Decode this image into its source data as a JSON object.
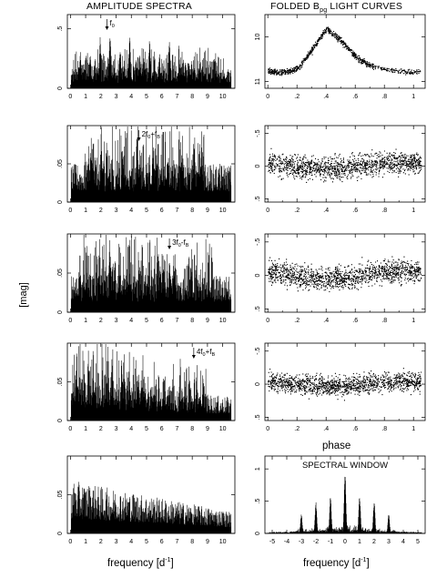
{
  "titles": {
    "left": "AMPLITUDE SPECTRA",
    "right_main": "FOLDED B",
    "right_sub": "pg",
    "right_tail": " LIGHT CURVES"
  },
  "shared_ylabel": "[mag]",
  "xlabels": {
    "frequency_main": "frequency [d",
    "frequency_sup": "-1",
    "frequency_tail": "]",
    "phase": "phase"
  },
  "chart_data": [
    {
      "type": "line",
      "panel": "amplitude-spectrum-1",
      "column": "left",
      "row": 1,
      "xlim": [
        -0.2,
        10.8
      ],
      "ylim": [
        0,
        0.62
      ],
      "xticks": [
        0,
        1,
        2,
        3,
        4,
        5,
        6,
        7,
        8,
        9,
        10
      ],
      "yticks": [
        0,
        0.5
      ],
      "ytick_labels": [
        "0",
        ".5"
      ],
      "peak_frequencies": [
        0.65,
        1.3,
        1.95,
        2.6,
        3.25,
        3.9,
        4.55,
        5.2,
        5.85,
        6.5,
        7.15,
        7.8,
        8.45,
        9.1,
        9.75
      ],
      "peak_amplitudes": [
        0.31,
        0.3,
        0.43,
        0.48,
        0.33,
        0.44,
        0.3,
        0.42,
        0.31,
        0.41,
        0.24,
        0.22,
        0.18,
        0.14,
        0.12
      ],
      "noise_level": 0.13,
      "annotation": {
        "text_main": "f",
        "text_sub": "0",
        "x": 2.4
      }
    },
    {
      "type": "line",
      "panel": "amplitude-spectrum-2",
      "column": "left",
      "row": 2,
      "xlim": [
        -0.2,
        10.8
      ],
      "ylim": [
        0,
        0.1
      ],
      "xticks": [
        0,
        1,
        2,
        3,
        4,
        5,
        6,
        7,
        8,
        9,
        10
      ],
      "yticks": [
        0,
        0.05
      ],
      "ytick_labels": [
        "0",
        ".05"
      ],
      "peak_frequencies": [
        1.4,
        2.4,
        3.4,
        4.4,
        5.4,
        6.4,
        7.4,
        8.4
      ],
      "peak_amplitudes": [
        0.062,
        0.064,
        0.07,
        0.085,
        0.066,
        0.06,
        0.05,
        0.045
      ],
      "noise_level": 0.04,
      "annotation": {
        "text_main": "2f",
        "text_sub": "0",
        "text_tail": "+f",
        "text_sub2": "B",
        "x": 4.5
      }
    },
    {
      "type": "line",
      "panel": "amplitude-spectrum-3",
      "column": "left",
      "row": 3,
      "xlim": [
        -0.2,
        10.8
      ],
      "ylim": [
        0,
        0.1
      ],
      "xticks": [
        0,
        1,
        2,
        3,
        4,
        5,
        6,
        7,
        8,
        9,
        10
      ],
      "yticks": [
        0,
        0.05
      ],
      "ytick_labels": [
        "0",
        ".05"
      ],
      "peak_frequencies": [
        0.9,
        1.9,
        2.9,
        3.9,
        4.9,
        5.9,
        6.5,
        7.9,
        8.9
      ],
      "peak_amplitudes": [
        0.04,
        0.048,
        0.058,
        0.048,
        0.052,
        0.06,
        0.07,
        0.045,
        0.04
      ],
      "noise_level": 0.038,
      "annotation": {
        "text_main": "3f",
        "text_sub": "0",
        "text_tail": "-f",
        "text_sub2": "B",
        "x": 6.5
      }
    },
    {
      "type": "line",
      "panel": "amplitude-spectrum-4",
      "column": "left",
      "row": 4,
      "xlim": [
        -0.2,
        10.8
      ],
      "ylim": [
        0,
        0.1
      ],
      "xticks": [
        0,
        1,
        2,
        3,
        4,
        5,
        6,
        7,
        8,
        9,
        10
      ],
      "yticks": [
        0,
        0.05
      ],
      "ytick_labels": [
        "0",
        ".05"
      ],
      "peak_frequencies": [
        0.5,
        1.5,
        2.5,
        3.5,
        4.5,
        5.5,
        6.5,
        7.5,
        8.5
      ],
      "peak_amplitudes": [
        0.052,
        0.06,
        0.06,
        0.055,
        0.045,
        0.04,
        0.036,
        0.034,
        0.032
      ],
      "noise_level": 0.036,
      "annotation": {
        "text_main": "4f",
        "text_sub": "0",
        "text_tail": "+f",
        "text_sub2": "B",
        "x": 8.1
      }
    },
    {
      "type": "line",
      "panel": "amplitude-spectrum-5",
      "column": "left",
      "row": 5,
      "xlim": [
        -0.2,
        10.8
      ],
      "ylim": [
        0,
        0.1
      ],
      "xticks": [
        0,
        1,
        2,
        3,
        4,
        5,
        6,
        7,
        8,
        9,
        10
      ],
      "yticks": [
        0,
        0.05
      ],
      "ytick_labels": [
        "0",
        ".05"
      ],
      "noise_level": 0.044
    },
    {
      "type": "scatter",
      "panel": "folded-light-curve-1",
      "column": "right",
      "row": 1,
      "xlim": [
        -0.02,
        1.08
      ],
      "ylim": [
        11.15,
        9.5
      ],
      "y_inverted": true,
      "xticks": [
        0,
        0.2,
        0.4,
        0.6,
        0.8,
        1
      ],
      "xtick_labels": [
        "0",
        ".2",
        ".4",
        ".6",
        ".8",
        "1"
      ],
      "yticks": [
        10,
        11
      ],
      "ytick_labels": [
        "10",
        "11"
      ],
      "curve_phase": [
        0,
        0.1,
        0.2,
        0.3,
        0.4,
        0.5,
        0.6,
        0.7,
        0.8,
        0.9,
        1.0
      ],
      "curve_mag": [
        10.78,
        10.8,
        10.72,
        10.3,
        9.82,
        10.08,
        10.45,
        10.65,
        10.72,
        10.78,
        10.8
      ]
    },
    {
      "type": "scatter",
      "panel": "folded-light-curve-2",
      "column": "right",
      "row": 2,
      "xlim": [
        -0.02,
        1.08
      ],
      "ylim": [
        0.55,
        -0.62
      ],
      "y_inverted": true,
      "xticks": [
        0,
        0.2,
        0.4,
        0.6,
        0.8,
        1
      ],
      "xtick_labels": [
        "0",
        ".2",
        ".4",
        ".6",
        ".8",
        "1"
      ],
      "yticks": [
        -0.5,
        0,
        0.5
      ],
      "ytick_labels": [
        "-.5",
        "0",
        ".5"
      ],
      "scatter_sigma": 0.12,
      "modulation_amplitude": 0.05
    },
    {
      "type": "scatter",
      "panel": "folded-light-curve-3",
      "column": "right",
      "row": 3,
      "xlim": [
        -0.02,
        1.08
      ],
      "ylim": [
        0.55,
        -0.62
      ],
      "y_inverted": true,
      "xticks": [
        0,
        0.2,
        0.4,
        0.6,
        0.8,
        1
      ],
      "xtick_labels": [
        "0",
        ".2",
        ".4",
        ".6",
        ".8",
        "1"
      ],
      "yticks": [
        -0.5,
        0,
        0.5
      ],
      "ytick_labels": [
        "-.5",
        "0",
        ".5"
      ],
      "scatter_sigma": 0.12,
      "modulation_amplitude": 0.06
    },
    {
      "type": "scatter",
      "panel": "folded-light-curve-4",
      "column": "right",
      "row": 4,
      "xlim": [
        -0.02,
        1.08
      ],
      "ylim": [
        0.55,
        -0.62
      ],
      "y_inverted": true,
      "xticks": [
        0,
        0.2,
        0.4,
        0.6,
        0.8,
        1
      ],
      "xtick_labels": [
        "0",
        ".2",
        ".4",
        ".6",
        ".8",
        "1"
      ],
      "yticks": [
        -0.5,
        0,
        0.5
      ],
      "ytick_labels": [
        "-.5",
        "0",
        ".5"
      ],
      "scatter_sigma": 0.1,
      "modulation_amplitude": 0.03
    },
    {
      "type": "line",
      "panel": "spectral-window",
      "column": "right",
      "row": 5,
      "title": "SPECTRAL WINDOW",
      "xlim": [
        -5.5,
        5.5
      ],
      "ylim": [
        0,
        1.2
      ],
      "xticks": [
        -5,
        -4,
        -3,
        -2,
        -1,
        0,
        1,
        2,
        3,
        4,
        5
      ],
      "yticks": [
        0,
        0.5,
        1
      ],
      "ytick_labels": [
        "0",
        ".5",
        "1"
      ],
      "peak_frequencies": [
        -3,
        -2,
        -1,
        0,
        1,
        2,
        3
      ],
      "peak_amplitudes": [
        0.3,
        0.5,
        0.62,
        1.0,
        0.62,
        0.5,
        0.3
      ],
      "noise_level": 0.08
    }
  ]
}
